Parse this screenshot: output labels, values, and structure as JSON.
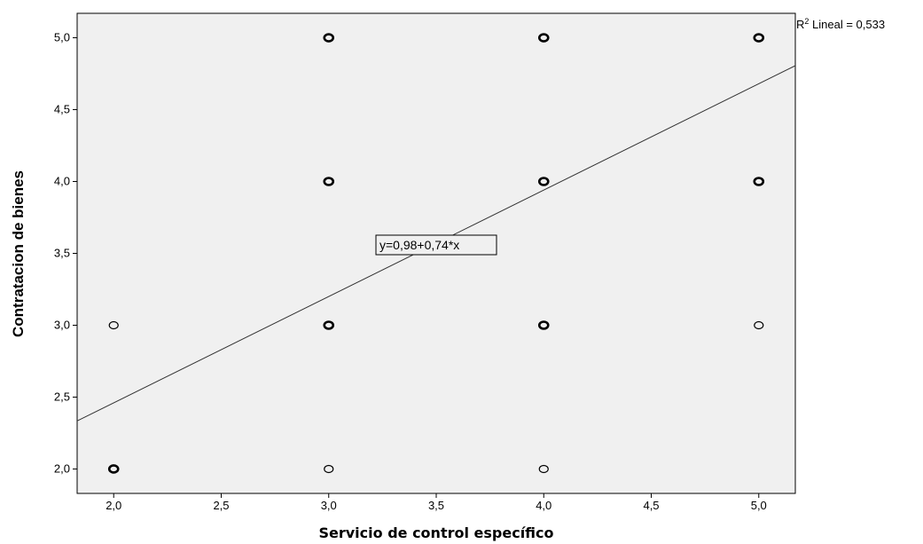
{
  "chart_data": {
    "type": "scatter",
    "xlabel": "Servicio de control específico",
    "ylabel": "Contratacion de bienes",
    "xlim": [
      1.83,
      5.17
    ],
    "ylim": [
      1.83,
      5.17
    ],
    "x_ticks": [
      "2,0",
      "2,5",
      "3,0",
      "3,5",
      "4,0",
      "4,5",
      "5,0"
    ],
    "x_tick_values": [
      2.0,
      2.5,
      3.0,
      3.5,
      4.0,
      4.5,
      5.0
    ],
    "y_ticks": [
      "2,0",
      "2,5",
      "3,0",
      "3,5",
      "4,0",
      "4,5",
      "5,0"
    ],
    "y_tick_values": [
      2.0,
      2.5,
      3.0,
      3.5,
      4.0,
      4.5,
      5.0
    ],
    "points": [
      {
        "x": 2,
        "y": 2,
        "bold": true
      },
      {
        "x": 2,
        "y": 3,
        "bold": false
      },
      {
        "x": 3,
        "y": 2,
        "bold": false
      },
      {
        "x": 3,
        "y": 3,
        "bold": true
      },
      {
        "x": 3,
        "y": 4,
        "bold": true
      },
      {
        "x": 3,
        "y": 5,
        "bold": true
      },
      {
        "x": 4,
        "y": 2,
        "bold": false
      },
      {
        "x": 4,
        "y": 3,
        "bold": true
      },
      {
        "x": 4,
        "y": 4,
        "bold": true
      },
      {
        "x": 4,
        "y": 5,
        "bold": true
      },
      {
        "x": 5,
        "y": 3,
        "bold": false
      },
      {
        "x": 5,
        "y": 4,
        "bold": true
      },
      {
        "x": 5,
        "y": 5,
        "bold": true
      }
    ],
    "fit_line": {
      "intercept": 0.98,
      "slope": 0.74
    },
    "equation_label": "y=0,98+0,74*x",
    "r2_prefix": "R",
    "r2_sup": "2",
    "r2_text": " Lineal = 0,533",
    "background": "#f0f0f0",
    "grid": false
  }
}
